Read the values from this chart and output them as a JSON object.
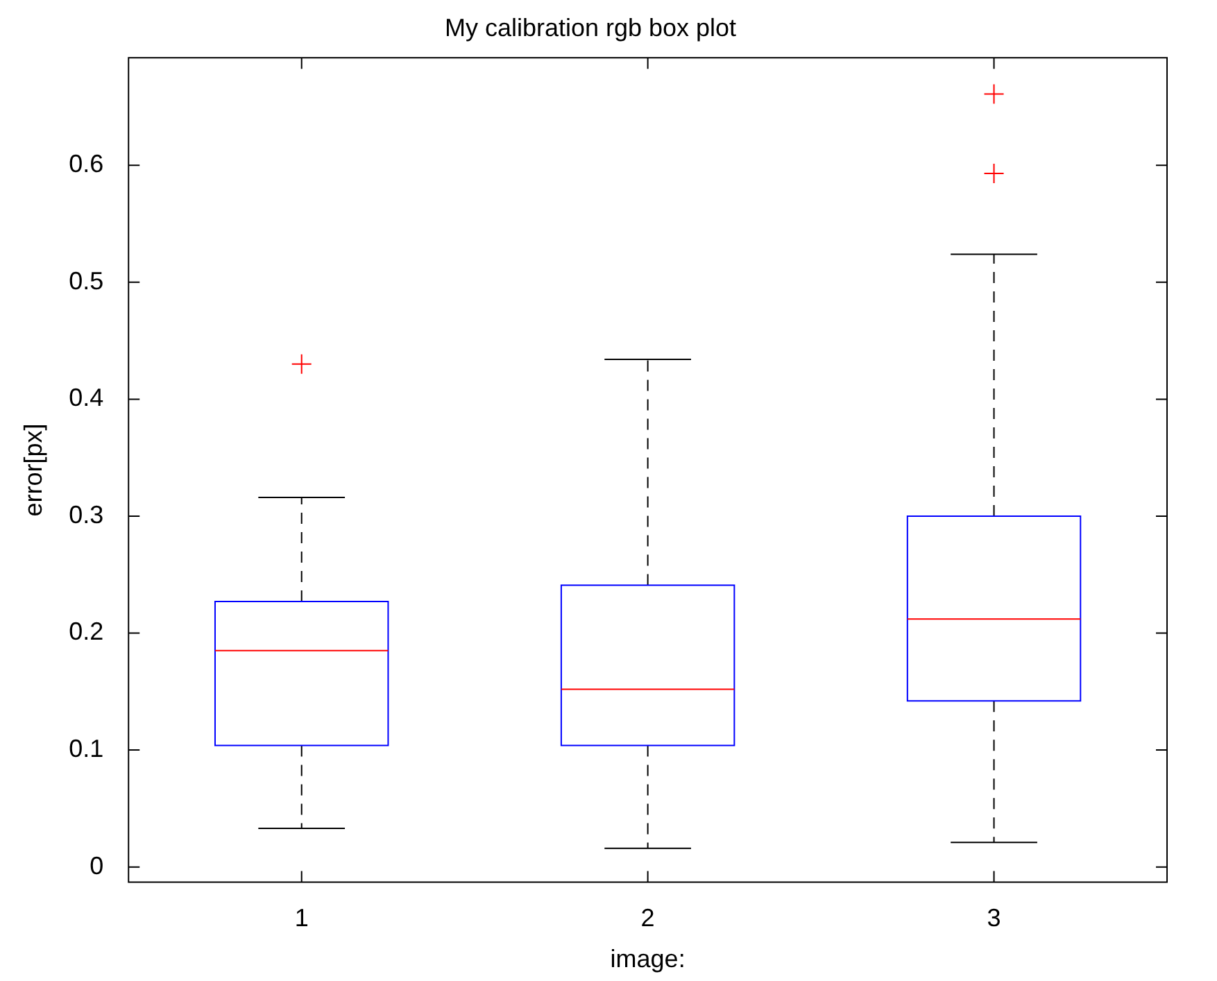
{
  "chart_data": {
    "type": "box",
    "title": "My calibration rgb box plot",
    "xlabel": "image:",
    "ylabel": "error[px]",
    "categories": [
      "1",
      "2",
      "3"
    ],
    "color": "#0000ff",
    "boxes": [
      {
        "low": 0.033,
        "q1": 0.104,
        "median": 0.185,
        "q3": 0.227,
        "high": 0.316,
        "outliers": [
          0.43
        ]
      },
      {
        "low": 0.016,
        "q1": 0.104,
        "median": 0.152,
        "q3": 0.241,
        "high": 0.434
      },
      {
        "low": 0.021,
        "q1": 0.142,
        "median": 0.212,
        "q3": 0.3,
        "high": 0.524,
        "outliers": [
          0.593,
          0.661
        ]
      }
    ],
    "ylim": [
      -0.013,
      0.692
    ],
    "yticks": [
      0,
      0.1,
      0.2,
      0.3,
      0.4,
      0.5,
      0.6
    ]
  }
}
